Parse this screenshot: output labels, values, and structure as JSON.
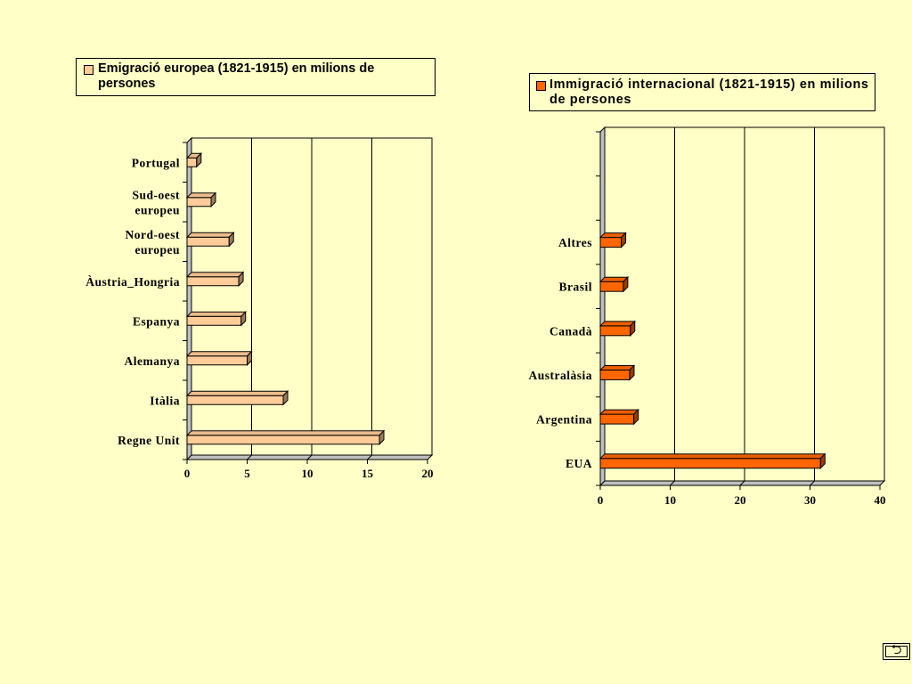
{
  "chart_data": [
    {
      "type": "bar",
      "orientation": "horizontal",
      "legend": "Emigració europea (1821-1915) en milions de persones",
      "categories": [
        "Regne Unit",
        "Itàlia",
        "Alemanya",
        "Espanya",
        "Àustria_Hongria",
        "Nord-oest europeu",
        "Sud-oest europeu",
        "Portugal"
      ],
      "category_lines": [
        [
          "Regne Unit"
        ],
        [
          "Itàlia"
        ],
        [
          "Alemanya"
        ],
        [
          "Espanya"
        ],
        [
          "Àustria_Hongria"
        ],
        [
          "Nord-oest",
          "europeu"
        ],
        [
          "Sud-oest",
          "europeu"
        ],
        [
          "Portugal"
        ]
      ],
      "values": [
        16,
        8,
        5,
        4.5,
        4.3,
        3.5,
        2,
        0.8
      ],
      "xlim": [
        0,
        20
      ],
      "ticks": [
        "0",
        "5",
        "10",
        "15",
        "20"
      ],
      "grid": true,
      "color": "#FFCC99",
      "legend_position": "top"
    },
    {
      "type": "bar",
      "orientation": "horizontal",
      "legend": "Immigració internacional (1821-1915) en milions de persones",
      "categories": [
        "EUA",
        "Argentina",
        "Australàsia",
        "Canadà",
        "Brasil",
        "Altres"
      ],
      "category_lines": [
        [
          "EUA"
        ],
        [
          "Argentina"
        ],
        [
          "Australàsia"
        ],
        [
          "Canadà"
        ],
        [
          "Brasil"
        ],
        [
          "Altres"
        ]
      ],
      "values": [
        31.5,
        4.8,
        4.2,
        4.3,
        3.3,
        3
      ],
      "xlim": [
        0,
        40
      ],
      "ticks": [
        "0",
        "10",
        "20",
        "30",
        "40"
      ],
      "grid": true,
      "color": "#FF6600",
      "legend_position": "top"
    }
  ],
  "nav_button": {
    "label": "⮌"
  }
}
